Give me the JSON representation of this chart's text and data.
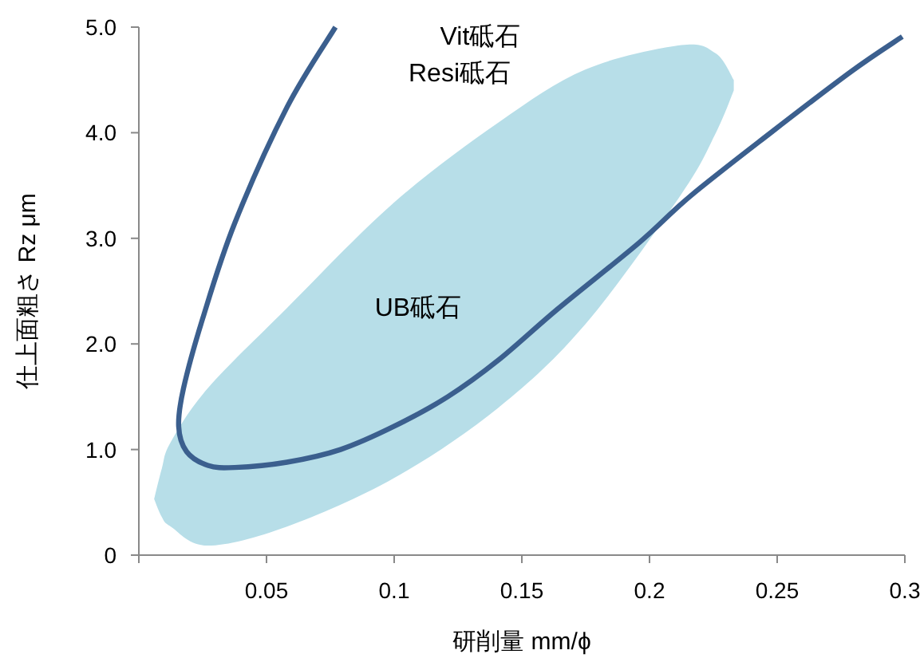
{
  "chart_data": {
    "type": "line",
    "xlabel": "研削量 mm/ϕ",
    "ylabel": "仕上面粗さ Rz μm",
    "xlim": [
      0,
      0.3
    ],
    "ylim": [
      0,
      5.0
    ],
    "xticks": [
      {
        "value": 0,
        "label": null
      },
      0.05,
      0.1,
      0.15,
      0.2,
      0.25,
      0.3
    ],
    "yticks": [
      {
        "value": 0,
        "label": "0"
      },
      {
        "value": 1,
        "label": "1.0"
      },
      {
        "value": 2,
        "label": "2.0"
      },
      {
        "value": 3,
        "label": "3.0"
      },
      {
        "value": 4,
        "label": "4.0"
      },
      {
        "value": 5,
        "label": "5.0"
      }
    ],
    "grid": false,
    "series": [
      {
        "type": "area",
        "color": "#b7dee8",
        "x": [
          0.006,
          0.009,
          0.0125,
          0.027,
          0.058,
          0.1,
          0.141,
          0.175,
          0.2125,
          0.226,
          0.233
        ],
        "values": [
          null,
          null,
          null,
          null,
          null,
          null,
          null,
          null,
          null,
          null,
          null
        ],
        "lower": [
          0.53,
          0.36,
          0.27,
          0.09,
          0.27,
          0.73,
          1.4,
          2.19,
          3.42,
          4.0,
          4.4
        ],
        "upper": [
          0.53,
          0.82,
          1.07,
          1.58,
          2.34,
          3.34,
          4.1,
          4.6,
          4.83,
          4.75,
          4.5
        ]
      },
      {
        "color": "#3b5f8e",
        "x": [
          0.077,
          0.058,
          0.0375,
          0.025,
          0.0175,
          0.0156,
          0.0187,
          0.027,
          0.0375,
          0.058,
          0.079,
          0.1,
          0.121,
          0.141,
          0.164,
          0.196,
          0.216,
          0.2475,
          0.279,
          0.299
        ],
        "values": [
          5.0,
          4.24,
          3.14,
          2.24,
          1.58,
          1.22,
          0.98,
          0.85,
          0.83,
          0.88,
          1.0,
          1.22,
          1.5,
          1.85,
          2.33,
          2.96,
          3.4,
          4.0,
          4.58,
          4.91
        ]
      }
    ],
    "annotations": [
      "Vit砥石",
      "Resi砥石",
      "UB砥石"
    ]
  }
}
